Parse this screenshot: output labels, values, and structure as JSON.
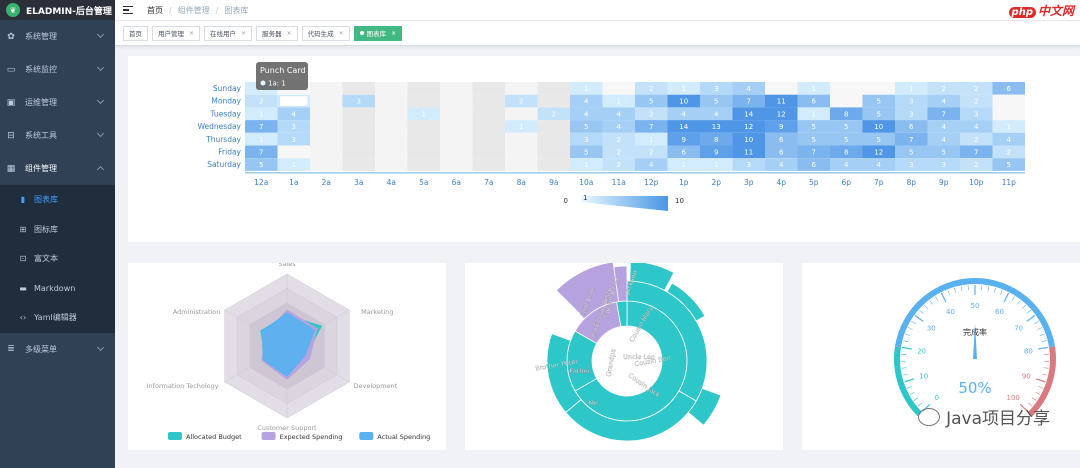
{
  "app": {
    "title": "ELADMIN-后台管理",
    "logo_icon": "leaf-icon"
  },
  "sidebar": {
    "items": [
      {
        "label": "系统管理",
        "icon": "gear-icon",
        "glyph": "✿",
        "expanded": false
      },
      {
        "label": "系统监控",
        "icon": "monitor-icon",
        "glyph": "▭",
        "expanded": false
      },
      {
        "label": "运维管理",
        "icon": "computer-icon",
        "glyph": "▣",
        "expanded": false
      },
      {
        "label": "系统工具",
        "icon": "toolbox-icon",
        "glyph": "⊟",
        "expanded": false
      },
      {
        "label": "组件管理",
        "icon": "grid-icon",
        "glyph": "▦",
        "expanded": true
      }
    ],
    "sub_items": [
      {
        "label": "图表库",
        "icon": "bar-chart-icon",
        "glyph": "▮",
        "active": true
      },
      {
        "label": "图标库",
        "icon": "icons-icon",
        "glyph": "⊞",
        "active": false
      },
      {
        "label": "富文本",
        "icon": "rich-text-icon",
        "glyph": "⊡",
        "active": false
      },
      {
        "label": "Markdown",
        "icon": "markdown-icon",
        "glyph": "▬",
        "active": false
      },
      {
        "label": "Yaml编辑器",
        "icon": "code-icon",
        "glyph": "‹›",
        "active": false
      }
    ],
    "last_item": {
      "label": "多级菜单",
      "icon": "menu-icon",
      "glyph": "≣"
    }
  },
  "navbar": {
    "breadcrumb": [
      "首页",
      "组件管理",
      "图表库"
    ],
    "brand_php": "php",
    "brand_text": "中文网"
  },
  "tags": [
    {
      "label": "首页",
      "closable": false,
      "active": false
    },
    {
      "label": "用户管理",
      "closable": true,
      "active": false
    },
    {
      "label": "在线用户",
      "closable": true,
      "active": false
    },
    {
      "label": "服务器",
      "closable": true,
      "active": false
    },
    {
      "label": "代码生成",
      "closable": true,
      "active": false
    },
    {
      "label": "图表库",
      "closable": true,
      "active": true
    }
  ],
  "chart_data": [
    {
      "type": "heatmap",
      "title": "",
      "y_categories": [
        "Saturday",
        "Friday",
        "Thursday",
        "Wednesday",
        "Tuesday",
        "Monday",
        "Sunday"
      ],
      "x_categories": [
        "12a",
        "1a",
        "2a",
        "3a",
        "4a",
        "5a",
        "6a",
        "7a",
        "8a",
        "9a",
        "10a",
        "11a",
        "12p",
        "1p",
        "2p",
        "3p",
        "4p",
        "5p",
        "6p",
        "7p",
        "8p",
        "9p",
        "10p",
        "11p"
      ],
      "rows": {
        "Sunday": [
          1,
          0,
          0,
          0,
          0,
          0,
          0,
          0,
          0,
          0,
          1,
          0,
          2,
          1,
          3,
          4,
          0,
          1,
          0,
          0,
          1,
          2,
          2,
          6
        ],
        "Monday": [
          2,
          1,
          0,
          3,
          0,
          0,
          0,
          0,
          2,
          0,
          4,
          1,
          5,
          10,
          5,
          7,
          11,
          6,
          0,
          5,
          3,
          4,
          2,
          0
        ],
        "Tuesday": [
          1,
          4,
          0,
          0,
          0,
          1,
          0,
          0,
          0,
          2,
          4,
          4,
          2,
          4,
          4,
          14,
          12,
          1,
          8,
          5,
          3,
          7,
          3,
          0
        ],
        "Wednesday": [
          7,
          3,
          0,
          0,
          0,
          0,
          0,
          0,
          1,
          0,
          5,
          4,
          7,
          14,
          13,
          12,
          9,
          5,
          5,
          10,
          6,
          4,
          4,
          1
        ],
        "Thursday": [
          1,
          3,
          0,
          0,
          0,
          0,
          0,
          0,
          0,
          0,
          3,
          2,
          1,
          9,
          8,
          10,
          6,
          5,
          5,
          5,
          7,
          4,
          2,
          4
        ],
        "Friday": [
          7,
          0,
          0,
          0,
          0,
          0,
          0,
          0,
          0,
          0,
          5,
          2,
          2,
          6,
          9,
          11,
          6,
          7,
          8,
          12,
          5,
          5,
          7,
          2
        ],
        "Saturday": [
          5,
          1,
          0,
          0,
          0,
          0,
          0,
          0,
          0,
          0,
          1,
          2,
          4,
          1,
          1,
          3,
          4,
          6,
          4,
          4,
          3,
          3,
          2,
          5
        ]
      },
      "visual_map": {
        "min": 0,
        "max": 10,
        "selected": 1
      },
      "tooltip": {
        "title": "Punch Card",
        "text": "1a: 1"
      }
    },
    {
      "type": "radar",
      "indicators": [
        "Sales",
        "Marketing",
        "Development",
        "Customer Support",
        "Information Techology",
        "Administration"
      ],
      "max": 100,
      "series": [
        {
          "name": "Allocated Budget",
          "color": "#2ec7c9",
          "values": [
            43,
            55,
            30,
            38,
            34,
            42
          ]
        },
        {
          "name": "Expected Spending",
          "color": "#b6a2de",
          "values": [
            50,
            48,
            36,
            46,
            40,
            34
          ]
        },
        {
          "name": "Actual Spending",
          "color": "#5ab1ef",
          "values": [
            46,
            44,
            28,
            42,
            38,
            40
          ]
        }
      ]
    },
    {
      "type": "sunburst",
      "labels": [
        "Uncle Leo",
        "Cousin Ben",
        "Cousin Jack",
        "Cousin Mary",
        "Jackson",
        "Me",
        "Brother Peter",
        "Father",
        "Grandpa",
        "Aunt",
        "Cousin Betty",
        "Aunt Jane",
        "Cousin Jenny"
      ],
      "colors": [
        "#2ec7c9",
        "#b6a2de"
      ]
    },
    {
      "type": "gauge",
      "title": "完成率",
      "value": 50,
      "value_text": "50%",
      "ticks": [
        "0",
        "10",
        "20",
        "30",
        "40",
        "50",
        "60",
        "70",
        "80",
        "90",
        "100"
      ]
    }
  ],
  "watermark": {
    "text": "Java项目分享",
    "icon": "wechat-icon"
  }
}
